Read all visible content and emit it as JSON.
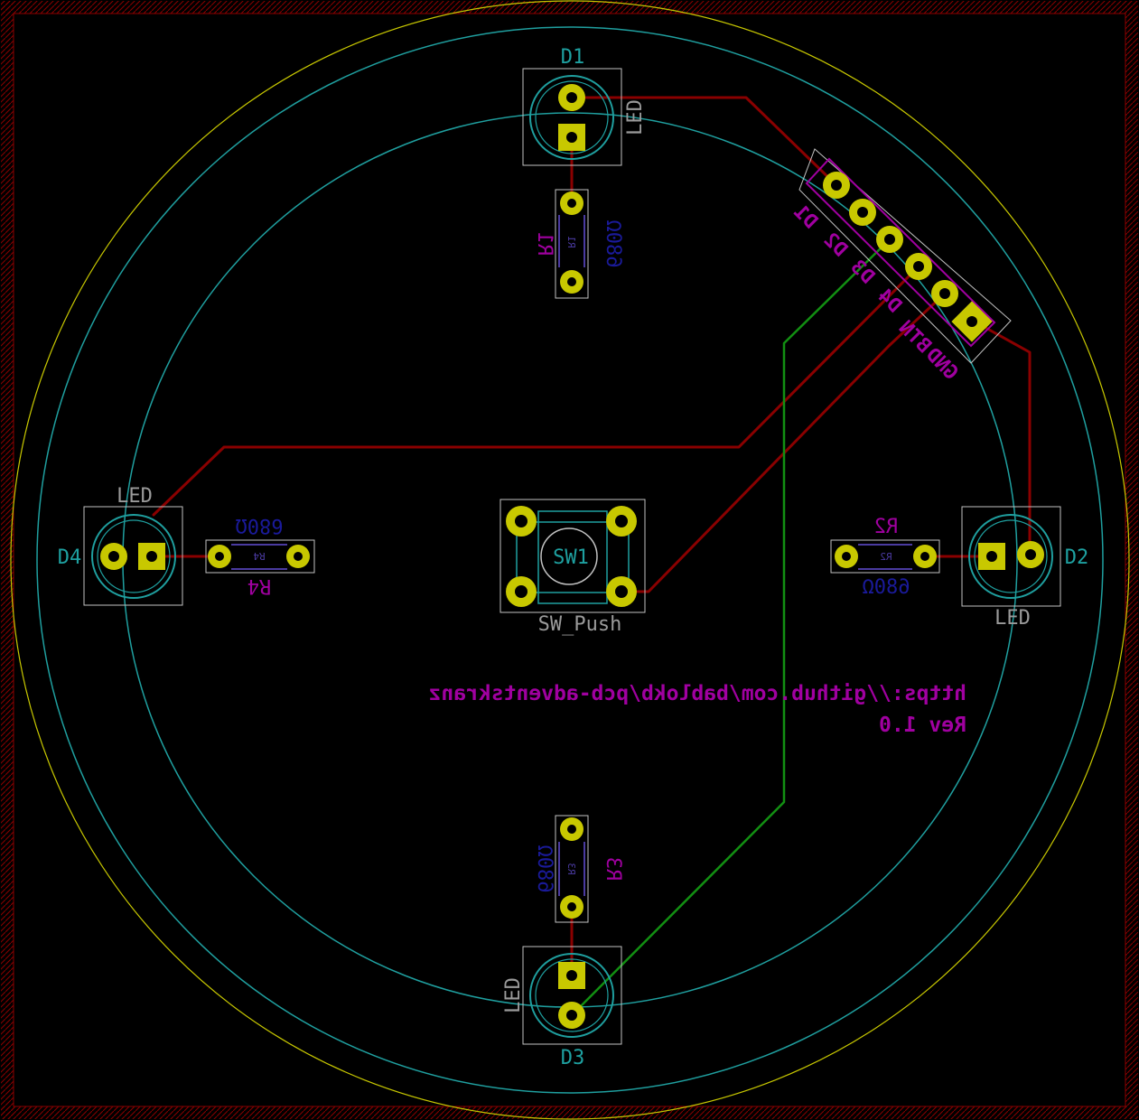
{
  "colors": {
    "background": "#000000",
    "edge_cuts": "#c8c800",
    "courtyard": "#1f9f9f",
    "fab": "#c2c2c2",
    "trace_front": "#8a0000",
    "trace_back": "#128f12",
    "pad_fill": "#c8c800",
    "drill": "#000000",
    "ref_teal": "#1ea0a0",
    "ref_purple": "#a000a0",
    "value_blue": "#1a1a9a",
    "fab_label": "#9a9a9a",
    "border_hatch": "#8a0000"
  },
  "components": {
    "d1": {
      "ref": "D1",
      "value": "LED"
    },
    "d2": {
      "ref": "D2",
      "value": "LED"
    },
    "d3": {
      "ref": "D3",
      "value": "LED"
    },
    "d4": {
      "ref": "D4",
      "value": "LED"
    },
    "r1": {
      "ref": "R1",
      "value": "680Ω",
      "fab_ref": "R1"
    },
    "r2": {
      "ref": "R2",
      "value": "680Ω",
      "fab_ref": "R2"
    },
    "r3": {
      "ref": "R3",
      "value": "680Ω",
      "fab_ref": "R3"
    },
    "r4": {
      "ref": "R4",
      "value": "680Ω",
      "fab_ref": "R4"
    },
    "sw1": {
      "ref": "SW1",
      "value": "SW_Push"
    }
  },
  "connector": {
    "pins": [
      "D1",
      "D2",
      "D3",
      "D4",
      "BTN",
      "GND"
    ]
  },
  "silkscreen": {
    "url": "https://github.com/bablokb/pcb-adventskranz",
    "rev": "Rev 1.0"
  }
}
